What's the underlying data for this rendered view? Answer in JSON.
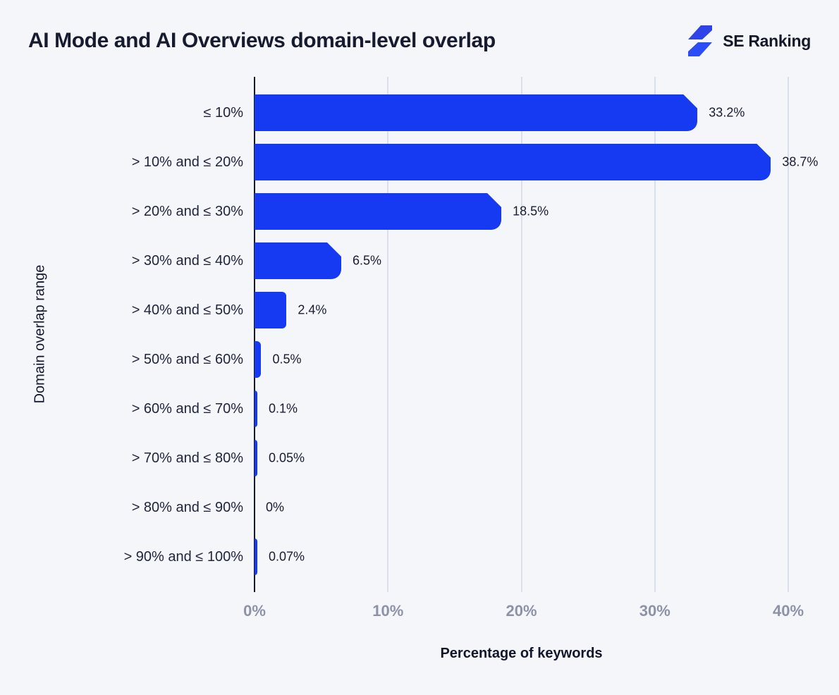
{
  "header": {
    "title": "AI Mode and AI Overviews domain-level overlap",
    "brand": "SE Ranking"
  },
  "colors": {
    "background": "#F5F6FA",
    "bar_blue": "#1639F2",
    "axis_dark": "#14182B",
    "gridline": "#D9DFEC",
    "tick_gray": "#8C93A6",
    "logo_blue_top": "#2E43E8",
    "logo_blue_bottom": "#2A4DF5"
  },
  "chart_data": {
    "type": "bar",
    "orientation": "horizontal",
    "title": "AI Mode and AI Overviews domain-level overlap",
    "categories": [
      "≤ 10%",
      "> 10% and ≤ 20%",
      "> 20% and ≤ 30%",
      "> 30% and ≤ 40%",
      "> 40% and ≤ 50%",
      "> 50% and ≤ 60%",
      "> 60% and ≤ 70%",
      "> 70% and ≤ 80%",
      "> 80% and ≤ 90%",
      "> 90% and ≤ 100%"
    ],
    "values": [
      33.2,
      38.7,
      18.5,
      6.5,
      2.4,
      0.5,
      0.1,
      0.05,
      0,
      0.07
    ],
    "value_labels": [
      "33.2%",
      "38.7%",
      "18.5%",
      "6.5%",
      "2.4%",
      "0.5%",
      "0.1%",
      "0.05%",
      "0%",
      "0.07%"
    ],
    "xlabel": "Percentage of keywords",
    "ylabel": "Domain overlap range",
    "x_ticks": [
      "0%",
      "10%",
      "20%",
      "30%",
      "40%"
    ],
    "xlim": [
      0,
      40
    ],
    "grid": true,
    "legend": false
  }
}
